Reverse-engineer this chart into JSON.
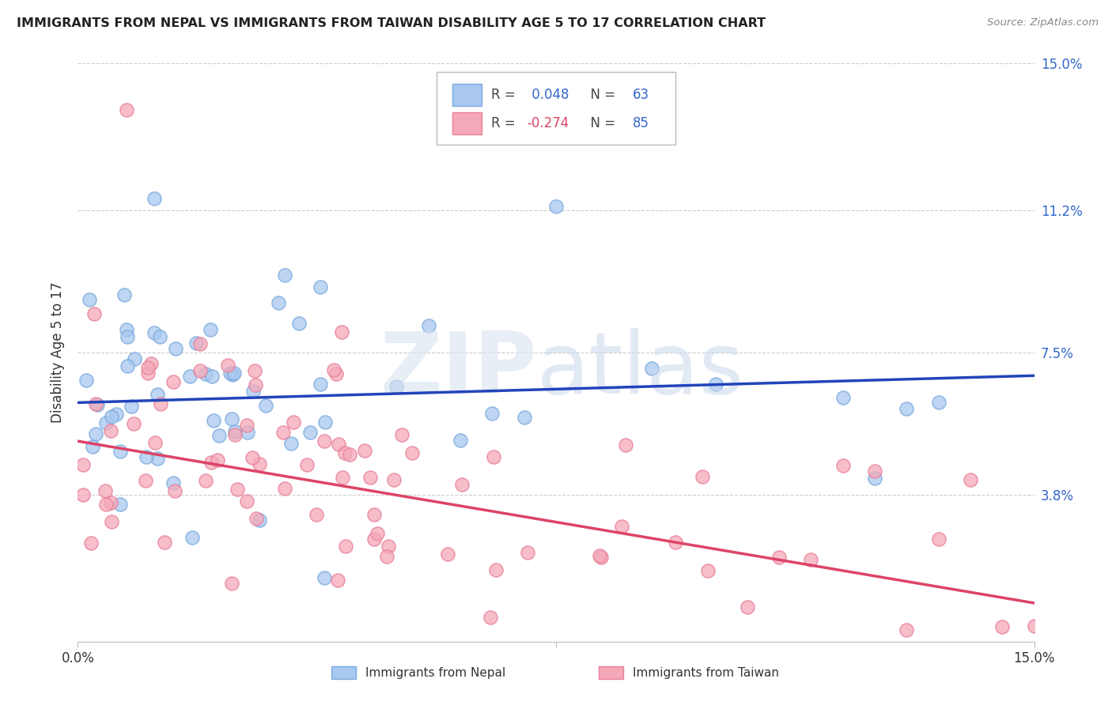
{
  "title": "IMMIGRANTS FROM NEPAL VS IMMIGRANTS FROM TAIWAN DISABILITY AGE 5 TO 17 CORRELATION CHART",
  "source": "Source: ZipAtlas.com",
  "ylabel": "Disability Age 5 to 17",
  "xlim": [
    0,
    0.15
  ],
  "ylim": [
    0,
    0.15
  ],
  "ytick_positions": [
    0.038,
    0.075,
    0.112,
    0.15
  ],
  "ytick_labels": [
    "3.8%",
    "7.5%",
    "11.2%",
    "15.0%"
  ],
  "nepal_R": 0.048,
  "nepal_N": 63,
  "taiwan_R": -0.274,
  "taiwan_N": 85,
  "nepal_color": "#a8c8f0",
  "taiwan_color": "#f5a8b8",
  "nepal_edge_color": "#7aaade",
  "taiwan_edge_color": "#e8809a",
  "nepal_line_color": "#2244bb",
  "taiwan_line_color": "#dd4466",
  "watermark_color": "#d8e4f0",
  "background_color": "#ffffff",
  "grid_color": "#cccccc",
  "nepal_line_start_y": 0.062,
  "nepal_line_end_y": 0.069,
  "taiwan_line_start_y": 0.052,
  "taiwan_line_end_y": 0.01
}
